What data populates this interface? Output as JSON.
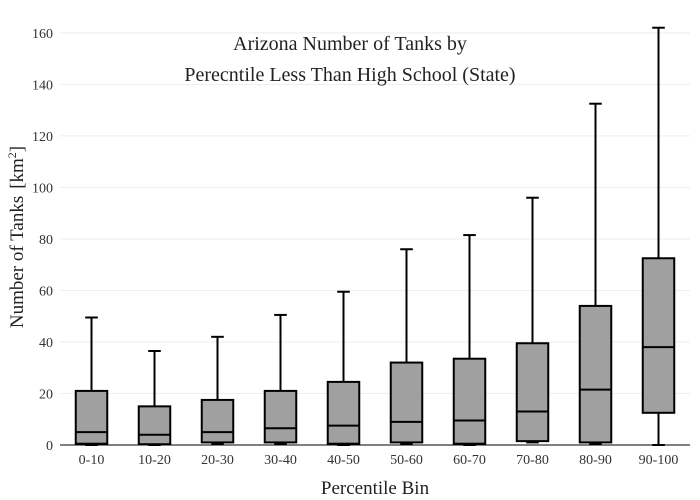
{
  "chart_data": {
    "type": "box",
    "title": [
      "Arizona Number of Tanks by",
      "Perecntile Less Than High School (State)"
    ],
    "xlabel": "Percentile Bin",
    "ylabel": "Number of Tanks",
    "ylabel_unit_base": "[km",
    "ylabel_unit_sup": "2",
    "ylabel_unit_close": "]",
    "ylim": [
      0,
      165
    ],
    "yticks": [
      0,
      20,
      40,
      60,
      80,
      100,
      120,
      140,
      160
    ],
    "grid": true,
    "categories": [
      "0-10",
      "10-20",
      "20-30",
      "30-40",
      "40-50",
      "50-60",
      "60-70",
      "70-80",
      "80-90",
      "90-100"
    ],
    "boxes": [
      {
        "min": 0,
        "q1": 0.5,
        "median": 5,
        "q3": 21,
        "max": 49.5
      },
      {
        "min": 0,
        "q1": 0.3,
        "median": 4,
        "q3": 15,
        "max": 36.5
      },
      {
        "min": 0.5,
        "q1": 1,
        "median": 5,
        "q3": 17.5,
        "max": 42
      },
      {
        "min": 0.5,
        "q1": 1,
        "median": 6.5,
        "q3": 21,
        "max": 50.5
      },
      {
        "min": 0,
        "q1": 0.5,
        "median": 7.5,
        "q3": 24.5,
        "max": 59.5
      },
      {
        "min": 0.5,
        "q1": 1,
        "median": 9,
        "q3": 32,
        "max": 76
      },
      {
        "min": 0,
        "q1": 0.5,
        "median": 9.5,
        "q3": 33.5,
        "max": 81.5
      },
      {
        "min": 1,
        "q1": 1.5,
        "median": 13,
        "q3": 39.5,
        "max": 96
      },
      {
        "min": 0.5,
        "q1": 1,
        "median": 21.5,
        "q3": 54,
        "max": 132.5
      },
      {
        "min": 0,
        "q1": 12.5,
        "median": 38,
        "q3": 72.5,
        "max": 162
      }
    ],
    "colors": {
      "box_fill": "#a0a0a0",
      "stroke": "#000000",
      "grid": "#eeeeee"
    }
  }
}
